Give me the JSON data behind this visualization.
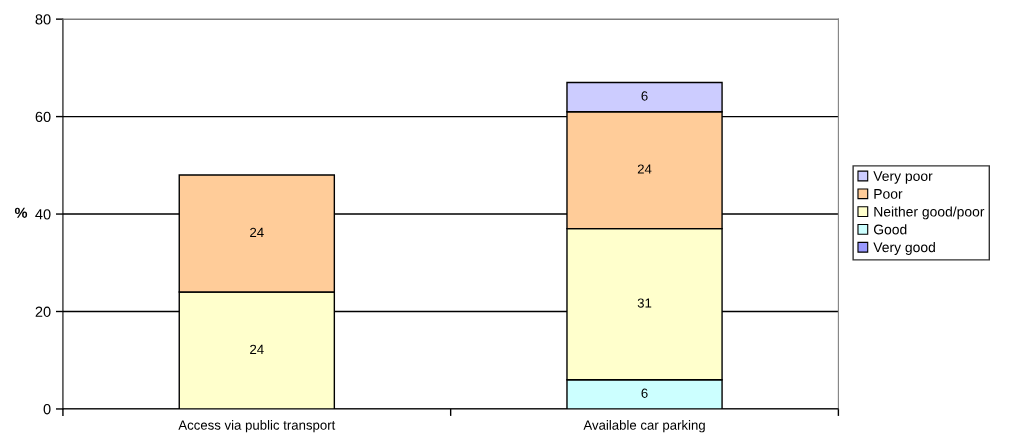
{
  "chart_data": {
    "type": "bar",
    "stacked": true,
    "ylabel": "%",
    "categories": [
      "Access via public transport",
      "Available car parking"
    ],
    "series": [
      {
        "name": "Very good",
        "color": "#9999ff",
        "values": [
          null,
          null
        ]
      },
      {
        "name": "Good",
        "color": "#ccffff",
        "values": [
          null,
          6
        ]
      },
      {
        "name": "Neither good/poor",
        "color": "#ffffcc",
        "values": [
          24,
          31
        ]
      },
      {
        "name": "Poor",
        "color": "#ffcc99",
        "values": [
          24,
          24
        ]
      },
      {
        "name": "Very poor",
        "color": "#ccccff",
        "values": [
          null,
          6
        ]
      }
    ],
    "ylim": [
      0,
      80
    ],
    "yticks": [
      0,
      20,
      40,
      60,
      80
    ],
    "grid": "y",
    "legend": "right",
    "data_labels": true
  }
}
